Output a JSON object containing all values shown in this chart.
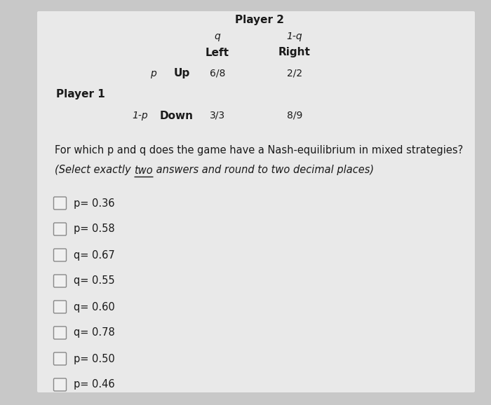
{
  "bg_color": "#c8c8c8",
  "panel_color": "#e8e8e8",
  "title_player2": "Player 2",
  "col_q": "q",
  "col_1mq": "1-q",
  "col_left": "Left",
  "col_right": "Right",
  "row_p_label": "p",
  "row_up_label": "Up",
  "row_up_payoff_left": "6/8",
  "row_up_payoff_right": "2/2",
  "player1_label": "Player 1",
  "row_1mp_label": "1-p",
  "row_down_label": "Down",
  "row_down_payoff_left": "3/3",
  "row_down_payoff_right": "8/9",
  "question_line1": "For which p and q does the game have a Nash-equilibrium in mixed strategies?",
  "question_line2_pre": "(Select exactly ",
  "question_line2_under": "two",
  "question_line2_post": " answers and round to two decimal places)",
  "options": [
    "p= 0.36",
    "p= 0.58",
    "q= 0.67",
    "q= 0.55",
    "q= 0.60",
    "q= 0.78",
    "p= 0.50",
    "p= 0.46"
  ],
  "text_color": "#1a1a1a",
  "checkbox_color": "#f0f0f0",
  "checkbox_edge_color": "#888888",
  "figwidth": 7.0,
  "figheight": 5.78,
  "dpi": 100
}
